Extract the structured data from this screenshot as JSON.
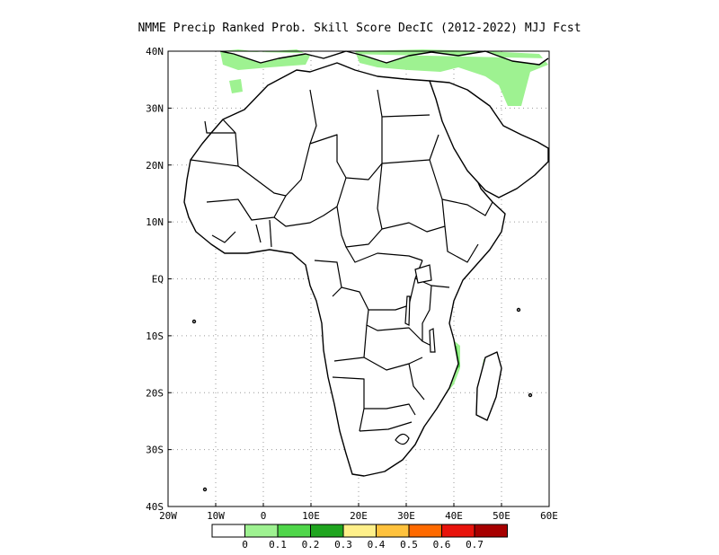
{
  "title": "NMME Precip Ranked Prob. Skill Score DecIC (2012-2022) MJJ Fcst",
  "map": {
    "lon_range": [
      -20,
      60
    ],
    "lat_range": [
      -40,
      40
    ],
    "lon_ticks": [
      {
        "value": -20,
        "label": "20W"
      },
      {
        "value": -10,
        "label": "10W"
      },
      {
        "value": 0,
        "label": "0"
      },
      {
        "value": 10,
        "label": "10E"
      },
      {
        "value": 20,
        "label": "20E"
      },
      {
        "value": 30,
        "label": "30E"
      },
      {
        "value": 40,
        "label": "40E"
      },
      {
        "value": 50,
        "label": "50E"
      },
      {
        "value": 60,
        "label": "60E"
      }
    ],
    "lat_ticks": [
      {
        "value": 40,
        "label": "40N"
      },
      {
        "value": 30,
        "label": "30N"
      },
      {
        "value": 20,
        "label": "20N"
      },
      {
        "value": 10,
        "label": "10N"
      },
      {
        "value": 0,
        "label": "EQ"
      },
      {
        "value": -10,
        "label": "10S"
      },
      {
        "value": -20,
        "label": "20S"
      },
      {
        "value": -30,
        "label": "30S"
      },
      {
        "value": -40,
        "label": "40S"
      }
    ],
    "grid": true
  },
  "colorbar": {
    "colors": [
      "#ffffff",
      "#9ef291",
      "#4fd64a",
      "#1fa51f",
      "#fff08a",
      "#ffc23d",
      "#ff6a00",
      "#e8140c",
      "#a70000"
    ],
    "labels": [
      "0",
      "0.1",
      "0.2",
      "0.3",
      "0.4",
      "0.5",
      "0.6",
      "0.7"
    ]
  }
}
